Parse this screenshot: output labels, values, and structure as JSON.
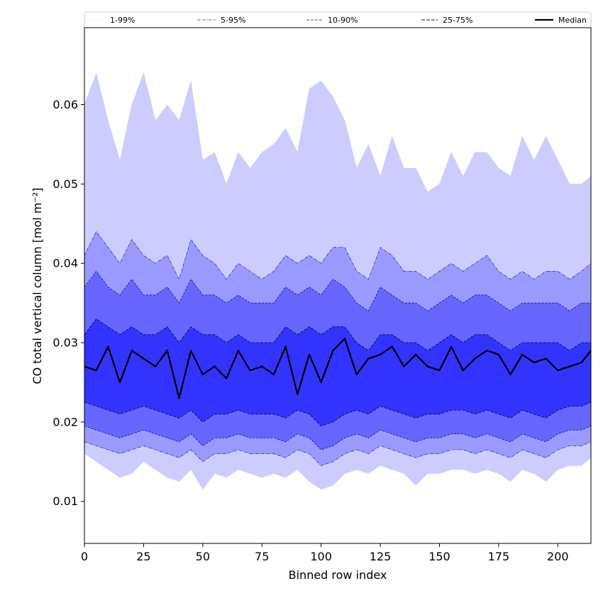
{
  "chart_data": {
    "type": "area",
    "title": "",
    "xlabel": "Binned row index",
    "ylabel": "CO total vertical column [mol m⁻²]",
    "xlim": [
      0,
      214
    ],
    "ylim": [
      0.0047,
      0.0697
    ],
    "xticks": [
      0,
      25,
      50,
      75,
      100,
      125,
      150,
      175,
      200
    ],
    "yticks": [
      0.01,
      0.02,
      0.03,
      0.04,
      0.05,
      0.06
    ],
    "ytick_labels": [
      "0.01",
      "0.02",
      "0.03",
      "0.04",
      "0.05",
      "0.06"
    ],
    "grid": false,
    "legend_position": "top, outside plot, single row",
    "legend": [
      {
        "label": "1-99%",
        "style": "dotted",
        "color": "#e6e6f5"
      },
      {
        "label": "5-95%",
        "style": "dashdot",
        "color": "#7777cc"
      },
      {
        "label": "10-90%",
        "style": "dashed",
        "color": "#6666ee"
      },
      {
        "label": "25-75%",
        "style": "dashed",
        "color": "#3333dd"
      },
      {
        "label": "Median",
        "style": "solid",
        "color": "#000000"
      }
    ],
    "fill_colors": {
      "p1_p99": "#ccccff",
      "p5_p95": "#9999ff",
      "p10_p90": "#6666ff",
      "p25_p75": "#3333ff"
    },
    "x": [
      0,
      5,
      10,
      15,
      20,
      25,
      30,
      35,
      40,
      45,
      50,
      55,
      60,
      65,
      70,
      75,
      80,
      85,
      90,
      95,
      100,
      105,
      110,
      115,
      120,
      125,
      130,
      135,
      140,
      145,
      150,
      155,
      160,
      165,
      170,
      175,
      180,
      185,
      190,
      195,
      200,
      205,
      210,
      214
    ],
    "series": [
      {
        "name": "1-99%",
        "lower": [
          0.016,
          0.015,
          0.014,
          0.013,
          0.0135,
          0.015,
          0.014,
          0.013,
          0.0125,
          0.014,
          0.0115,
          0.0135,
          0.013,
          0.014,
          0.0135,
          0.013,
          0.0135,
          0.013,
          0.014,
          0.0125,
          0.0115,
          0.012,
          0.0135,
          0.014,
          0.0135,
          0.0145,
          0.014,
          0.0135,
          0.012,
          0.0135,
          0.0135,
          0.014,
          0.014,
          0.0135,
          0.014,
          0.0135,
          0.0125,
          0.014,
          0.0135,
          0.0125,
          0.014,
          0.0145,
          0.0145,
          0.0155
        ],
        "upper": [
          0.06,
          0.064,
          0.058,
          0.053,
          0.06,
          0.064,
          0.058,
          0.06,
          0.058,
          0.063,
          0.053,
          0.054,
          0.05,
          0.054,
          0.052,
          0.054,
          0.055,
          0.057,
          0.054,
          0.062,
          0.063,
          0.061,
          0.058,
          0.052,
          0.055,
          0.051,
          0.056,
          0.052,
          0.052,
          0.049,
          0.05,
          0.054,
          0.051,
          0.054,
          0.054,
          0.052,
          0.051,
          0.056,
          0.053,
          0.056,
          0.053,
          0.05,
          0.05,
          0.051
        ]
      },
      {
        "name": "5-95%",
        "lower": [
          0.0175,
          0.017,
          0.0165,
          0.016,
          0.0165,
          0.017,
          0.0165,
          0.016,
          0.0155,
          0.0165,
          0.015,
          0.016,
          0.016,
          0.0165,
          0.016,
          0.016,
          0.016,
          0.0155,
          0.0165,
          0.016,
          0.0145,
          0.015,
          0.016,
          0.0165,
          0.016,
          0.017,
          0.0165,
          0.016,
          0.0155,
          0.016,
          0.016,
          0.0165,
          0.0165,
          0.016,
          0.0165,
          0.016,
          0.0155,
          0.0165,
          0.016,
          0.0155,
          0.0165,
          0.017,
          0.017,
          0.0175
        ],
        "upper": [
          0.041,
          0.044,
          0.042,
          0.04,
          0.043,
          0.041,
          0.04,
          0.041,
          0.038,
          0.043,
          0.041,
          0.04,
          0.038,
          0.04,
          0.039,
          0.038,
          0.039,
          0.041,
          0.04,
          0.041,
          0.04,
          0.042,
          0.042,
          0.039,
          0.038,
          0.042,
          0.041,
          0.039,
          0.039,
          0.038,
          0.039,
          0.04,
          0.039,
          0.04,
          0.041,
          0.039,
          0.038,
          0.039,
          0.038,
          0.039,
          0.039,
          0.038,
          0.039,
          0.04
        ]
      },
      {
        "name": "10-90%",
        "lower": [
          0.0195,
          0.019,
          0.0185,
          0.018,
          0.0185,
          0.019,
          0.0185,
          0.018,
          0.0175,
          0.0185,
          0.017,
          0.018,
          0.018,
          0.0185,
          0.018,
          0.018,
          0.018,
          0.0175,
          0.0185,
          0.018,
          0.0165,
          0.017,
          0.018,
          0.0185,
          0.018,
          0.019,
          0.0185,
          0.018,
          0.0175,
          0.018,
          0.018,
          0.0185,
          0.0185,
          0.018,
          0.0185,
          0.018,
          0.0175,
          0.0185,
          0.018,
          0.0175,
          0.0185,
          0.019,
          0.019,
          0.0195
        ],
        "upper": [
          0.037,
          0.039,
          0.037,
          0.036,
          0.038,
          0.036,
          0.036,
          0.037,
          0.035,
          0.038,
          0.036,
          0.036,
          0.035,
          0.036,
          0.035,
          0.035,
          0.035,
          0.037,
          0.036,
          0.037,
          0.036,
          0.038,
          0.037,
          0.035,
          0.034,
          0.037,
          0.036,
          0.035,
          0.035,
          0.034,
          0.035,
          0.036,
          0.035,
          0.036,
          0.036,
          0.035,
          0.034,
          0.035,
          0.035,
          0.035,
          0.035,
          0.034,
          0.035,
          0.035
        ]
      },
      {
        "name": "25-75%",
        "lower": [
          0.0225,
          0.022,
          0.0215,
          0.021,
          0.0215,
          0.022,
          0.0215,
          0.021,
          0.0205,
          0.0215,
          0.02,
          0.021,
          0.021,
          0.0215,
          0.021,
          0.021,
          0.021,
          0.0205,
          0.0215,
          0.021,
          0.0195,
          0.02,
          0.021,
          0.0215,
          0.021,
          0.022,
          0.0215,
          0.021,
          0.0205,
          0.021,
          0.021,
          0.0215,
          0.0215,
          0.021,
          0.0215,
          0.021,
          0.0205,
          0.0215,
          0.021,
          0.0205,
          0.0215,
          0.022,
          0.022,
          0.0225
        ],
        "upper": [
          0.031,
          0.033,
          0.032,
          0.031,
          0.032,
          0.031,
          0.031,
          0.032,
          0.03,
          0.032,
          0.031,
          0.031,
          0.03,
          0.031,
          0.03,
          0.03,
          0.03,
          0.032,
          0.031,
          0.032,
          0.031,
          0.032,
          0.032,
          0.03,
          0.029,
          0.031,
          0.031,
          0.03,
          0.03,
          0.029,
          0.03,
          0.031,
          0.03,
          0.031,
          0.031,
          0.03,
          0.029,
          0.03,
          0.03,
          0.03,
          0.03,
          0.029,
          0.03,
          0.03
        ]
      },
      {
        "name": "Median",
        "values": [
          0.027,
          0.0265,
          0.0295,
          0.025,
          0.029,
          0.028,
          0.027,
          0.029,
          0.023,
          0.029,
          0.026,
          0.027,
          0.0255,
          0.029,
          0.0265,
          0.027,
          0.026,
          0.0295,
          0.0235,
          0.0285,
          0.025,
          0.029,
          0.0305,
          0.026,
          0.028,
          0.0285,
          0.0295,
          0.027,
          0.0285,
          0.027,
          0.0265,
          0.0295,
          0.0265,
          0.028,
          0.029,
          0.0285,
          0.026,
          0.0285,
          0.0275,
          0.028,
          0.0265,
          0.027,
          0.0275,
          0.029
        ]
      }
    ]
  }
}
